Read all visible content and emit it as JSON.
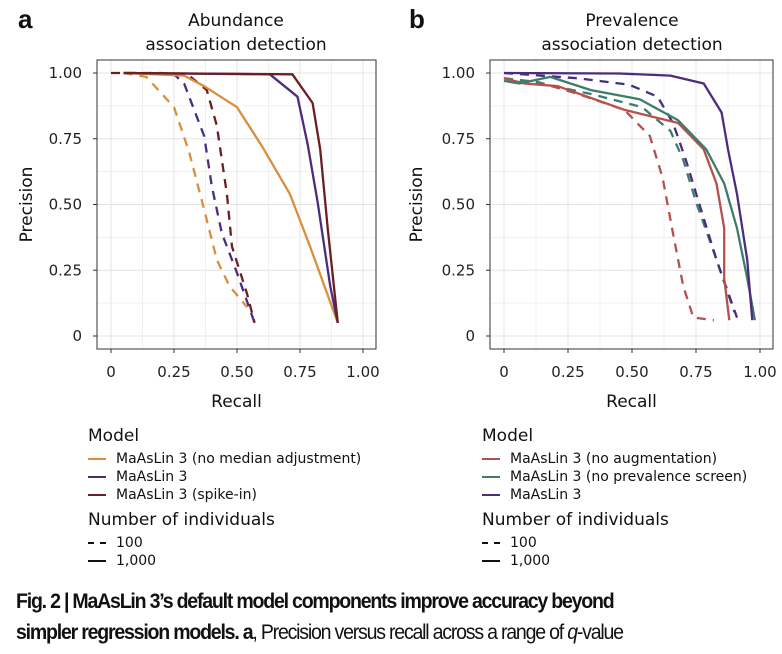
{
  "panels": [
    {
      "label": "a",
      "title": [
        "Abundance",
        "association detection"
      ]
    },
    {
      "label": "b",
      "title": [
        "Prevalence",
        "association detection"
      ]
    }
  ],
  "legends": [
    {
      "model_title": "Model",
      "models": [
        "MaAsLin 3 (no median adjustment)",
        "MaAsLin 3",
        "MaAsLin 3 (spike-in)"
      ],
      "n_title": "Number of individuals",
      "n_items": [
        "100",
        "1,000"
      ]
    },
    {
      "model_title": "Model",
      "models": [
        "MaAsLin 3 (no augmentation)",
        "MaAsLin 3 (no prevalence screen)",
        "MaAsLin 3"
      ],
      "n_title": "Number of individuals",
      "n_items": [
        "100",
        "1,000"
      ]
    }
  ],
  "caption": {
    "bold1": "Fig. 2 | MaAsLin 3’s default model components improve accuracy beyond",
    "bold2": "simpler regression models. a",
    "rest2": ", Precision versus recall across a range of ",
    "q": "q",
    "rest3": "-value"
  },
  "chart_data": [
    {
      "type": "line",
      "title": "Abundance association detection",
      "xlabel": "Recall",
      "ylabel": "Precision",
      "xlim": [
        0,
        1
      ],
      "ylim": [
        0,
        1
      ],
      "grid": true,
      "xticks": [
        "0",
        "0.25",
        "0.50",
        "0.75",
        "1.00"
      ],
      "yticks": [
        "0",
        "0.25",
        "0.50",
        "0.75",
        "1.00"
      ],
      "series": [
        {
          "name": "MaAsLin 3 (no median adjustment)",
          "n": "100",
          "color": "#d98f3b",
          "dash": true,
          "x": [
            0.05,
            0.14,
            0.25,
            0.31,
            0.37,
            0.42,
            0.47,
            0.54
          ],
          "y": [
            1.0,
            0.985,
            0.87,
            0.7,
            0.48,
            0.29,
            0.19,
            0.11
          ]
        },
        {
          "name": "MaAsLin 3",
          "n": "100",
          "color": "#4b2c7e",
          "dash": true,
          "x": [
            0.05,
            0.25,
            0.29,
            0.37,
            0.4,
            0.44,
            0.5,
            0.57
          ],
          "y": [
            1.0,
            0.995,
            0.96,
            0.76,
            0.57,
            0.39,
            0.24,
            0.05
          ]
        },
        {
          "name": "MaAsLin 3 (spike-in)",
          "n": "100",
          "color": "#6b1f24",
          "dash": true,
          "x": [
            0.0,
            0.2,
            0.31,
            0.38,
            0.42,
            0.46,
            0.48,
            0.54,
            0.57
          ],
          "y": [
            1.0,
            1.0,
            0.99,
            0.935,
            0.8,
            0.54,
            0.34,
            0.16,
            0.05
          ]
        },
        {
          "name": "MaAsLin 3 (no median adjustment)",
          "n": "1,000",
          "color": "#d98f3b",
          "dash": false,
          "x": [
            0.05,
            0.29,
            0.37,
            0.5,
            0.6,
            0.71,
            0.79,
            0.9
          ],
          "y": [
            1.0,
            0.99,
            0.95,
            0.87,
            0.72,
            0.54,
            0.34,
            0.05
          ]
        },
        {
          "name": "MaAsLin 3",
          "n": "1,000",
          "color": "#4b2c7e",
          "dash": false,
          "x": [
            0.05,
            0.63,
            0.74,
            0.78,
            0.82,
            0.87,
            0.9
          ],
          "y": [
            1.0,
            0.995,
            0.91,
            0.73,
            0.51,
            0.19,
            0.05
          ]
        },
        {
          "name": "MaAsLin 3 (spike-in)",
          "n": "1,000",
          "color": "#6b1f24",
          "dash": false,
          "x": [
            0.05,
            0.72,
            0.8,
            0.83,
            0.86,
            0.9
          ],
          "y": [
            1.0,
            0.995,
            0.886,
            0.71,
            0.41,
            0.05
          ]
        }
      ]
    },
    {
      "type": "line",
      "title": "Prevalence association detection",
      "xlabel": "Recall",
      "ylabel": "Precision",
      "xlim": [
        0,
        1
      ],
      "ylim": [
        0,
        1
      ],
      "grid": true,
      "xticks": [
        "0",
        "0.25",
        "0.50",
        "0.75",
        "1.00"
      ],
      "yticks": [
        "0",
        "0.25",
        "0.50",
        "0.75",
        "1.00"
      ],
      "series": [
        {
          "name": "MaAsLin 3 (no augmentation)",
          "n": "100",
          "color": "#b5504f",
          "dash": true,
          "x": [
            0.0,
            0.13,
            0.29,
            0.47,
            0.57,
            0.62,
            0.66,
            0.7,
            0.74,
            0.82
          ],
          "y": [
            0.98,
            0.966,
            0.92,
            0.86,
            0.76,
            0.6,
            0.39,
            0.19,
            0.07,
            0.06
          ]
        },
        {
          "name": "MaAsLin 3 (no prevalence screen)",
          "n": "100",
          "color": "#3e7d6c",
          "dash": true,
          "x": [
            0.0,
            0.15,
            0.34,
            0.54,
            0.65,
            0.7,
            0.75,
            0.83,
            0.9
          ],
          "y": [
            0.98,
            0.96,
            0.92,
            0.87,
            0.78,
            0.67,
            0.51,
            0.29,
            0.09
          ]
        },
        {
          "name": "MaAsLin 3",
          "n": "100",
          "color": "#4b2c7e",
          "dash": true,
          "x": [
            0.0,
            0.29,
            0.49,
            0.6,
            0.66,
            0.71,
            0.77,
            0.83,
            0.91
          ],
          "y": [
            1.0,
            0.98,
            0.955,
            0.91,
            0.81,
            0.67,
            0.48,
            0.29,
            0.07
          ]
        },
        {
          "name": "MaAsLin 3 (no augmentation)",
          "n": "1,000",
          "color": "#b5504f",
          "dash": false,
          "x": [
            0.0,
            0.08,
            0.21,
            0.47,
            0.68,
            0.78,
            0.83,
            0.86,
            0.86,
            0.88
          ],
          "y": [
            0.98,
            0.96,
            0.95,
            0.86,
            0.81,
            0.71,
            0.58,
            0.41,
            0.22,
            0.06
          ]
        },
        {
          "name": "MaAsLin 3 (no prevalence screen)",
          "n": "1,000",
          "color": "#3e7d6c",
          "dash": false,
          "x": [
            0.0,
            0.06,
            0.18,
            0.34,
            0.53,
            0.68,
            0.79,
            0.86,
            0.91,
            0.95,
            0.98
          ],
          "y": [
            0.97,
            0.96,
            0.985,
            0.935,
            0.9,
            0.82,
            0.71,
            0.58,
            0.41,
            0.22,
            0.06
          ]
        },
        {
          "name": "MaAsLin 3",
          "n": "1,000",
          "color": "#4b2c7e",
          "dash": false,
          "x": [
            0.0,
            0.45,
            0.65,
            0.78,
            0.85,
            0.875,
            0.91,
            0.95,
            0.97
          ],
          "y": [
            1.0,
            0.998,
            0.99,
            0.96,
            0.85,
            0.71,
            0.54,
            0.29,
            0.06
          ]
        }
      ]
    }
  ]
}
